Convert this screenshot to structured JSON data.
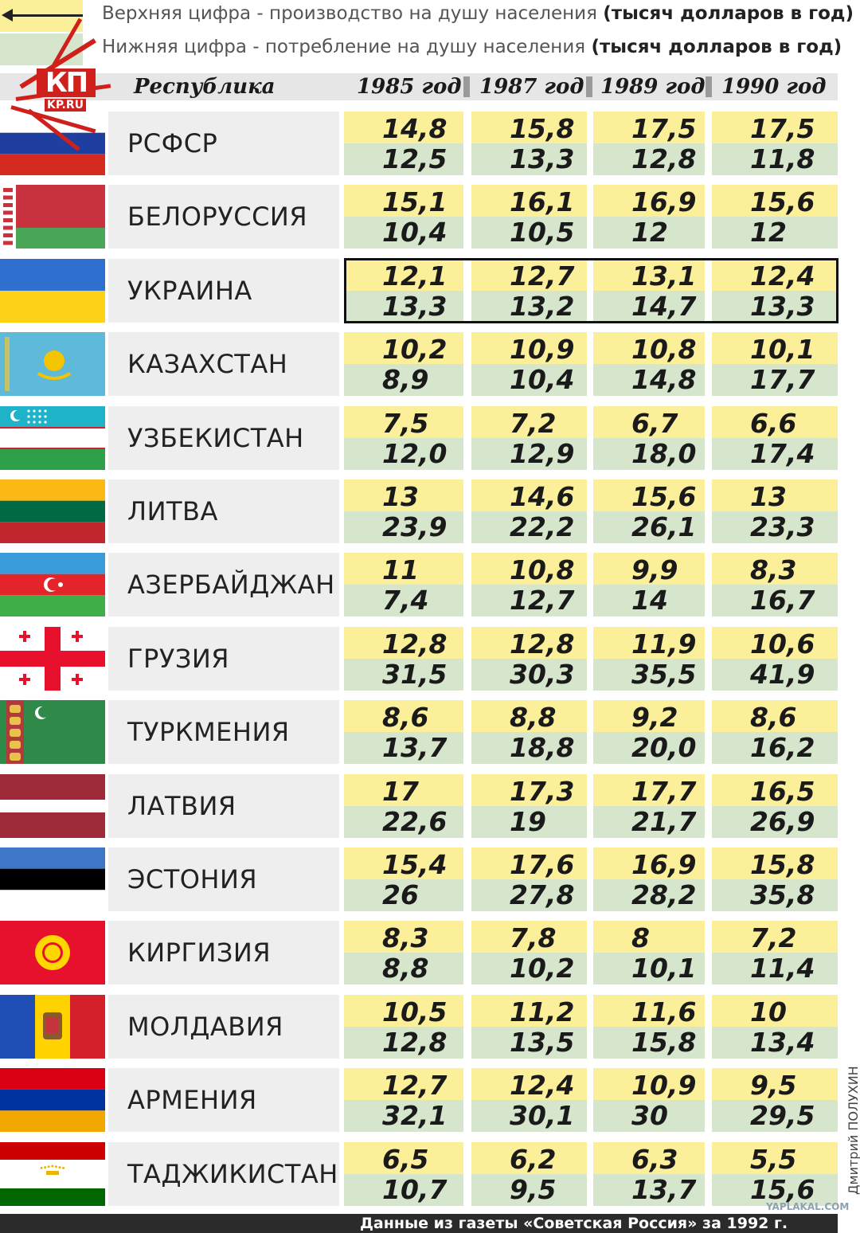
{
  "legend": {
    "top_text": "Верхняя цифра - производство на душу населения",
    "top_bold": "(тысяч долларов в год)",
    "bottom_text": "Нижняя цифра - потребление на душу населения",
    "bottom_bold": "(тысяч долларов в год)",
    "colors": {
      "production": "#fcef9a",
      "consumption": "#d6e6cd"
    }
  },
  "logo": {
    "main": "КП",
    "sub": "KP.RU"
  },
  "header": {
    "republic_label": "Республика",
    "years": [
      "1985 год",
      "1987 год",
      "1989 год",
      "1990 год"
    ]
  },
  "rows": [
    {
      "name": "РСФСР",
      "flag": "russia",
      "values": [
        [
          "14,8",
          "12,5"
        ],
        [
          "15,8",
          "13,3"
        ],
        [
          "17,5",
          "12,8"
        ],
        [
          "17,5",
          "11,8"
        ]
      ]
    },
    {
      "name": "БЕЛОРУССИЯ",
      "flag": "belarus",
      "values": [
        [
          "15,1",
          "10,4"
        ],
        [
          "16,1",
          "10,5"
        ],
        [
          "16,9",
          "12"
        ],
        [
          "15,6",
          "12"
        ]
      ]
    },
    {
      "name": "УКРАИНА",
      "flag": "ukraine",
      "highlighted": true,
      "values": [
        [
          "12,1",
          "13,3"
        ],
        [
          "12,7",
          "13,2"
        ],
        [
          "13,1",
          "14,7"
        ],
        [
          "12,4",
          "13,3"
        ]
      ]
    },
    {
      "name": "КАЗАХСТАН",
      "flag": "kazakhstan",
      "values": [
        [
          "10,2",
          "8,9"
        ],
        [
          "10,9",
          "10,4"
        ],
        [
          "10,8",
          "14,8"
        ],
        [
          "10,1",
          "17,7"
        ]
      ]
    },
    {
      "name": "УЗБЕКИСТАН",
      "flag": "uzbekistan",
      "values": [
        [
          "7,5",
          "12,0"
        ],
        [
          "7,2",
          "12,9"
        ],
        [
          "6,7",
          "18,0"
        ],
        [
          "6,6",
          "17,4"
        ]
      ]
    },
    {
      "name": "ЛИТВА",
      "flag": "lithuania",
      "values": [
        [
          "13",
          "23,9"
        ],
        [
          "14,6",
          "22,2"
        ],
        [
          "15,6",
          "26,1"
        ],
        [
          "13",
          "23,3"
        ]
      ]
    },
    {
      "name": "АЗЕРБАЙДЖАН",
      "flag": "azerbaijan",
      "values": [
        [
          "11",
          "7,4"
        ],
        [
          "10,8",
          "12,7"
        ],
        [
          "9,9",
          "14"
        ],
        [
          "8,3",
          "16,7"
        ]
      ]
    },
    {
      "name": "ГРУЗИЯ",
      "flag": "georgia",
      "values": [
        [
          "12,8",
          "31,5"
        ],
        [
          "12,8",
          "30,3"
        ],
        [
          "11,9",
          "35,5"
        ],
        [
          "10,6",
          "41,9"
        ]
      ]
    },
    {
      "name": "ТУРКМЕНИЯ",
      "flag": "turkmenistan",
      "values": [
        [
          "8,6",
          "13,7"
        ],
        [
          "8,8",
          "18,8"
        ],
        [
          "9,2",
          "20,0"
        ],
        [
          "8,6",
          "16,2"
        ]
      ]
    },
    {
      "name": "ЛАТВИЯ",
      "flag": "latvia",
      "values": [
        [
          "17",
          "22,6"
        ],
        [
          "17,3",
          "19"
        ],
        [
          "17,7",
          "21,7"
        ],
        [
          "16,5",
          "26,9"
        ]
      ]
    },
    {
      "name": "ЭСТОНИЯ",
      "flag": "estonia",
      "values": [
        [
          "15,4",
          "26"
        ],
        [
          "17,6",
          "27,8"
        ],
        [
          "16,9",
          "28,2"
        ],
        [
          "15,8",
          "35,8"
        ]
      ]
    },
    {
      "name": "КИРГИЗИЯ",
      "flag": "kyrgyzstan",
      "values": [
        [
          "8,3",
          "8,8"
        ],
        [
          "7,8",
          "10,2"
        ],
        [
          "8",
          "10,1"
        ],
        [
          "7,2",
          "11,4"
        ]
      ]
    },
    {
      "name": "МОЛДАВИЯ",
      "flag": "moldova",
      "values": [
        [
          "10,5",
          "12,8"
        ],
        [
          "11,2",
          "13,5"
        ],
        [
          "11,6",
          "15,8"
        ],
        [
          "10",
          "13,4"
        ]
      ]
    },
    {
      "name": "АРМЕНИЯ",
      "flag": "armenia",
      "values": [
        [
          "12,7",
          "32,1"
        ],
        [
          "12,4",
          "30,1"
        ],
        [
          "10,9",
          "30"
        ],
        [
          "9,5",
          "29,5"
        ]
      ]
    },
    {
      "name": "ТАДЖИКИСТАН",
      "flag": "tajikistan",
      "values": [
        [
          "6,5",
          "10,7"
        ],
        [
          "6,2",
          "9,5"
        ],
        [
          "6,3",
          "13,7"
        ],
        [
          "5,5",
          "15,6"
        ]
      ]
    }
  ],
  "footer": {
    "source": "Данные из газеты «Советская Россия» за 1992 г."
  },
  "author": "Дмитрий ПОЛУХИН",
  "watermark": "YAPLAKAL.COM"
}
